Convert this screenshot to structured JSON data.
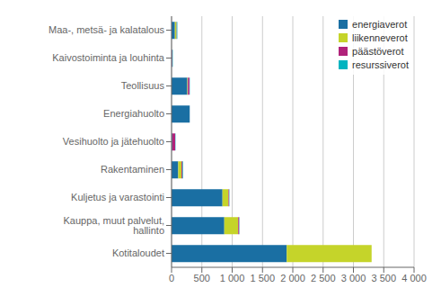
{
  "chart_data": {
    "type": "bar",
    "orientation": "horizontal",
    "stacked": true,
    "categories": [
      "Kotitaloudet",
      "Kauppa, muut palvelut, hallinto",
      "Kuljetus ja varastointi",
      "Rakentaminen",
      "Vesihuolto ja jätehuolto",
      "Energiahuolto",
      "Teollisuus",
      "Kaivostoiminta ja louhinta",
      "Maa-, metsä- ja kalatalous"
    ],
    "series": [
      {
        "name": "energiaverot",
        "color": "#1a6fa3",
        "values": [
          1900,
          870,
          840,
          110,
          10,
          300,
          260,
          10,
          55
        ]
      },
      {
        "name": "liikenneverot",
        "color": "#c5d42a",
        "values": [
          1400,
          230,
          100,
          55,
          0,
          0,
          10,
          0,
          25
        ]
      },
      {
        "name": "päästöverot",
        "color": "#b0227a",
        "values": [
          0,
          15,
          10,
          15,
          50,
          0,
          25,
          5,
          5
        ]
      },
      {
        "name": "resurssiverot",
        "color": "#00b4c0",
        "values": [
          0,
          5,
          5,
          10,
          5,
          0,
          5,
          5,
          10
        ]
      }
    ],
    "xlim": [
      0,
      4000
    ],
    "xticks": [
      0,
      500,
      {
        "value": 1000,
        "label": "1 000"
      },
      {
        "value": 1500,
        "label": "1 500"
      },
      {
        "value": 2000,
        "label": "2 000"
      },
      {
        "value": 2500,
        "label": "2 500"
      },
      {
        "value": 3000,
        "label": "3 000"
      },
      {
        "value": 3500,
        "label": "3 500"
      },
      {
        "value": 4000,
        "label": "4 000"
      }
    ],
    "grid": true,
    "legend": "upper right"
  }
}
